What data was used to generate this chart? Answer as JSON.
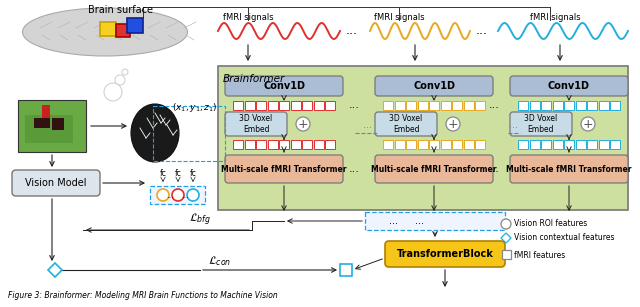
{
  "green_bg": "#cde0a0",
  "conv_box_color": "#aabdd4",
  "voxel_box_color": "#c8dce8",
  "transformer_box_color": "#e8b898",
  "transformer_block_color": "#f5c518",
  "vision_model_color": "#dce4ec",
  "signal_red": "#e03030",
  "signal_yellow": "#e8a820",
  "signal_cyan": "#20b0e0",
  "dashed_blue": "#20a0e0",
  "arrow_color": "#222222",
  "brainformer_label": "Brainformer",
  "conv1d_label": "Conv1D",
  "voxel_label": "3D Voxel\nEmbed",
  "ms_label": "Multi-scale fMRI Transformer",
  "tb_label": "TransformerBlock",
  "vm_label": "Vision Model",
  "fmri_label": "fMRI signals",
  "brain_surface_label": "Brain surface",
  "coord_label": "$(x_1,y_1,z_1)$",
  "lbfg_label": "$\\mathcal{L}_{bfg}$",
  "lcon_label": "$\\mathcal{L}_{con}$",
  "leg_roi": "Vision ROI features",
  "leg_ctx": "Vision contextual features",
  "leg_fmri": "fMRI features",
  "caption": "Figure 3: Brainformer: Modeling MRI Brain Functions to Machine Vision"
}
